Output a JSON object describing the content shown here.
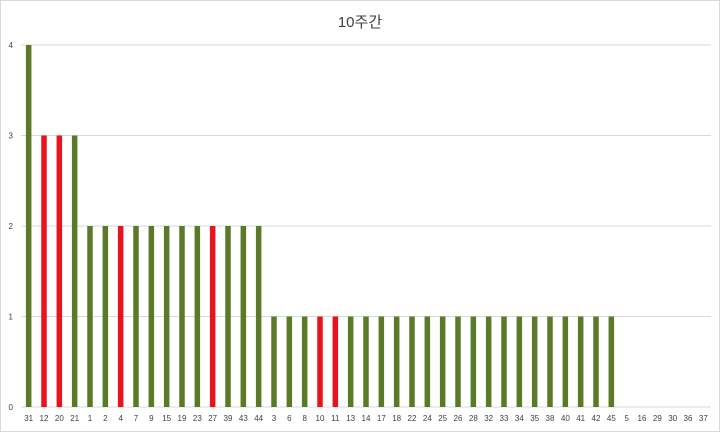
{
  "chart_data": {
    "type": "bar",
    "title": "10주간",
    "xlabel": "",
    "ylabel": "",
    "ylim": [
      0,
      4
    ],
    "yticks": [
      0,
      1,
      2,
      3,
      4
    ],
    "grid": true,
    "categories": [
      "31",
      "12",
      "20",
      "21",
      "1",
      "2",
      "4",
      "7",
      "9",
      "15",
      "19",
      "23",
      "27",
      "39",
      "43",
      "44",
      "3",
      "6",
      "8",
      "10",
      "11",
      "13",
      "14",
      "17",
      "18",
      "22",
      "24",
      "25",
      "26",
      "28",
      "32",
      "33",
      "34",
      "35",
      "38",
      "40",
      "41",
      "42",
      "45",
      "5",
      "16",
      "29",
      "30",
      "36",
      "37"
    ],
    "values": [
      4,
      3,
      3,
      3,
      2,
      2,
      2,
      2,
      2,
      2,
      2,
      2,
      2,
      2,
      2,
      2,
      1,
      1,
      1,
      1,
      1,
      1,
      1,
      1,
      1,
      1,
      1,
      1,
      1,
      1,
      1,
      1,
      1,
      1,
      1,
      1,
      1,
      1,
      1,
      0,
      0,
      0,
      0,
      0,
      0
    ],
    "bar_colors": [
      "#5b7a28",
      "#e8141b",
      "#e8141b",
      "#5b7a28",
      "#5b7a28",
      "#5b7a28",
      "#e8141b",
      "#5b7a28",
      "#5b7a28",
      "#5b7a28",
      "#5b7a28",
      "#5b7a28",
      "#e8141b",
      "#5b7a28",
      "#5b7a28",
      "#5b7a28",
      "#5b7a28",
      "#5b7a28",
      "#5b7a28",
      "#e8141b",
      "#e8141b",
      "#5b7a28",
      "#5b7a28",
      "#5b7a28",
      "#5b7a28",
      "#5b7a28",
      "#5b7a28",
      "#5b7a28",
      "#5b7a28",
      "#5b7a28",
      "#5b7a28",
      "#5b7a28",
      "#5b7a28",
      "#5b7a28",
      "#5b7a28",
      "#5b7a28",
      "#5b7a28",
      "#5b7a28",
      "#5b7a28",
      "#5b7a28",
      "#5b7a28",
      "#5b7a28",
      "#5b7a28",
      "#5b7a28",
      "#5b7a28"
    ],
    "colors": {
      "green": "#5b7a28",
      "red": "#e8141b",
      "grid": "#d9d9d9"
    }
  }
}
